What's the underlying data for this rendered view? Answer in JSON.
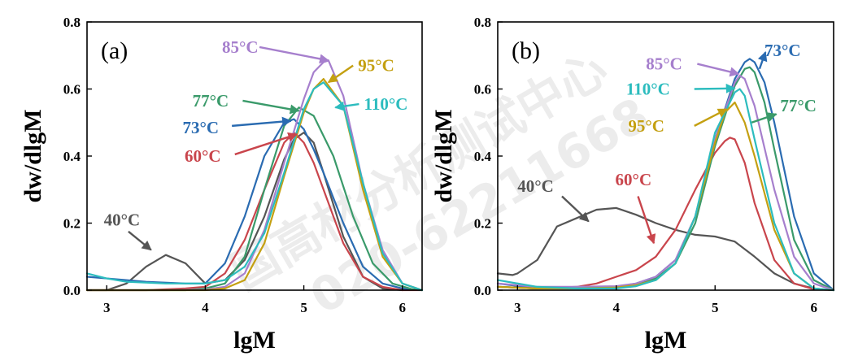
{
  "watermark": {
    "line1": "国高材分析测试中心",
    "line2": "020-62211668"
  },
  "colors": {
    "40°C": "#555555",
    "60°C": "#c9454c",
    "73°C": "#2a6bb1",
    "77°C": "#3a9a6a",
    "85°C": "#a67fcd",
    "95°C": "#c4a012",
    "110°C": "#2cbcbe"
  },
  "chart_data": [
    {
      "type": "line",
      "panel_label": "(a)",
      "xlabel": "lgM",
      "ylabel": "dw/dlgM",
      "xlim": [
        2.8,
        6.2
      ],
      "ylim": [
        0,
        0.8
      ],
      "xticks": [
        "3",
        "4",
        "5",
        "6"
      ],
      "yticks": [
        "0.0",
        "0.2",
        "0.4",
        "0.6",
        "0.8"
      ],
      "grid": false,
      "series": [
        {
          "name": "40°C",
          "x": [
            2.8,
            3.0,
            3.2,
            3.4,
            3.6,
            3.8,
            4.0,
            4.2,
            4.4,
            4.6,
            4.8,
            4.9,
            5.0,
            5.1,
            5.2,
            5.4,
            5.6,
            5.8,
            6.0
          ],
          "y": [
            0.0,
            0.0,
            0.02,
            0.07,
            0.105,
            0.08,
            0.02,
            0.03,
            0.09,
            0.22,
            0.39,
            0.45,
            0.47,
            0.44,
            0.35,
            0.16,
            0.04,
            0.005,
            0.0
          ]
        },
        {
          "name": "60°C",
          "x": [
            2.8,
            3.4,
            3.8,
            4.0,
            4.2,
            4.4,
            4.6,
            4.8,
            4.9,
            5.0,
            5.1,
            5.2,
            5.4,
            5.6,
            5.8,
            6.0,
            6.2
          ],
          "y": [
            0.0,
            0.0,
            0.005,
            0.01,
            0.05,
            0.15,
            0.3,
            0.44,
            0.47,
            0.44,
            0.38,
            0.3,
            0.14,
            0.04,
            0.01,
            0.0,
            0.0
          ]
        },
        {
          "name": "73°C",
          "x": [
            2.8,
            3.4,
            3.8,
            4.0,
            4.2,
            4.4,
            4.6,
            4.8,
            4.9,
            5.0,
            5.1,
            5.2,
            5.4,
            5.6,
            5.8,
            6.0,
            6.2
          ],
          "y": [
            0.04,
            0.025,
            0.02,
            0.02,
            0.08,
            0.22,
            0.4,
            0.5,
            0.51,
            0.48,
            0.42,
            0.35,
            0.2,
            0.07,
            0.02,
            0.005,
            0.0
          ]
        },
        {
          "name": "77°C",
          "x": [
            2.8,
            3.4,
            3.8,
            4.0,
            4.2,
            4.4,
            4.6,
            4.8,
            4.95,
            5.1,
            5.3,
            5.5,
            5.7,
            5.9,
            6.1,
            6.2
          ],
          "y": [
            0.0,
            0.0,
            0.0,
            0.005,
            0.02,
            0.1,
            0.3,
            0.49,
            0.545,
            0.52,
            0.4,
            0.22,
            0.08,
            0.02,
            0.003,
            0.0
          ]
        },
        {
          "name": "85°C",
          "x": [
            2.8,
            3.6,
            4.0,
            4.2,
            4.4,
            4.6,
            4.8,
            5.0,
            5.1,
            5.2,
            5.25,
            5.4,
            5.6,
            5.8,
            6.0,
            6.2
          ],
          "y": [
            0.0,
            0.0,
            0.002,
            0.01,
            0.05,
            0.18,
            0.38,
            0.57,
            0.65,
            0.68,
            0.685,
            0.58,
            0.32,
            0.12,
            0.02,
            0.0
          ]
        },
        {
          "name": "95°C",
          "x": [
            2.8,
            3.6,
            4.0,
            4.2,
            4.4,
            4.6,
            4.8,
            5.0,
            5.1,
            5.2,
            5.4,
            5.6,
            5.8,
            6.0,
            6.2
          ],
          "y": [
            0.0,
            0.0,
            0.0,
            0.005,
            0.03,
            0.14,
            0.34,
            0.53,
            0.6,
            0.63,
            0.55,
            0.3,
            0.1,
            0.02,
            0.0
          ]
        },
        {
          "name": "110°C",
          "x": [
            2.8,
            3.0,
            3.2,
            3.6,
            4.0,
            4.2,
            4.4,
            4.6,
            4.8,
            5.0,
            5.1,
            5.2,
            5.4,
            5.6,
            5.8,
            6.0,
            6.2
          ],
          "y": [
            0.05,
            0.035,
            0.025,
            0.02,
            0.02,
            0.03,
            0.07,
            0.17,
            0.35,
            0.54,
            0.6,
            0.62,
            0.55,
            0.32,
            0.11,
            0.02,
            0.0
          ]
        }
      ],
      "annotations": [
        {
          "series": "85°C",
          "text": "85°C",
          "label_x": 4.17,
          "label_y": 0.725,
          "arrow_from": [
            4.55,
            0.725
          ],
          "arrow_to": [
            5.25,
            0.685
          ]
        },
        {
          "series": "95°C",
          "text": "95°C",
          "label_x": 5.55,
          "label_y": 0.67,
          "arrow_from": [
            5.5,
            0.67
          ],
          "arrow_to": [
            5.25,
            0.62
          ]
        },
        {
          "series": "77°C",
          "text": "77°C",
          "label_x": 3.87,
          "label_y": 0.565,
          "arrow_from": [
            4.38,
            0.565
          ],
          "arrow_to": [
            4.95,
            0.535
          ]
        },
        {
          "series": "110°C",
          "text": "110°C",
          "label_x": 5.61,
          "label_y": 0.555,
          "arrow_from": [
            5.56,
            0.555
          ],
          "arrow_to": [
            5.32,
            0.545
          ]
        },
        {
          "series": "73°C",
          "text": "73°C",
          "label_x": 3.77,
          "label_y": 0.485,
          "arrow_from": [
            4.27,
            0.49
          ],
          "arrow_to": [
            4.87,
            0.505
          ]
        },
        {
          "series": "60°C",
          "text": "60°C",
          "label_x": 3.79,
          "label_y": 0.4,
          "arrow_from": [
            4.3,
            0.405
          ],
          "arrow_to": [
            4.93,
            0.465
          ]
        },
        {
          "series": "40°C",
          "text": "40°C",
          "label_x": 2.97,
          "label_y": 0.21,
          "arrow_from": [
            3.22,
            0.175
          ],
          "arrow_to": [
            3.45,
            0.12
          ]
        }
      ]
    },
    {
      "type": "line",
      "panel_label": "(b)",
      "xlabel": "lgM",
      "ylabel": "dw/dlgM",
      "xlim": [
        2.8,
        6.2
      ],
      "ylim": [
        0,
        0.8
      ],
      "xticks": [
        "3",
        "4",
        "5",
        "6"
      ],
      "yticks": [
        "0.0",
        "0.2",
        "0.4",
        "0.6",
        "0.8"
      ],
      "grid": false,
      "series": [
        {
          "name": "40°C",
          "x": [
            2.8,
            2.95,
            3.0,
            3.2,
            3.4,
            3.6,
            3.8,
            4.0,
            4.2,
            4.4,
            4.6,
            4.8,
            5.0,
            5.2,
            5.4,
            5.6,
            5.8,
            6.0,
            6.2
          ],
          "y": [
            0.05,
            0.045,
            0.05,
            0.09,
            0.19,
            0.215,
            0.24,
            0.245,
            0.225,
            0.2,
            0.18,
            0.165,
            0.16,
            0.145,
            0.1,
            0.05,
            0.02,
            0.005,
            0.0
          ]
        },
        {
          "name": "60°C",
          "x": [
            2.8,
            3.2,
            3.6,
            3.8,
            4.0,
            4.2,
            4.4,
            4.6,
            4.8,
            5.0,
            5.1,
            5.15,
            5.2,
            5.3,
            5.4,
            5.6,
            5.8,
            6.0,
            6.2
          ],
          "y": [
            0.01,
            0.005,
            0.01,
            0.02,
            0.04,
            0.06,
            0.1,
            0.18,
            0.3,
            0.41,
            0.445,
            0.455,
            0.45,
            0.38,
            0.26,
            0.09,
            0.02,
            0.003,
            0.0
          ]
        },
        {
          "name": "73°C",
          "x": [
            2.8,
            3.2,
            3.6,
            4.0,
            4.2,
            4.4,
            4.6,
            4.8,
            5.0,
            5.2,
            5.3,
            5.35,
            5.4,
            5.5,
            5.6,
            5.8,
            6.0,
            6.2
          ],
          "y": [
            0.02,
            0.005,
            0.005,
            0.01,
            0.02,
            0.04,
            0.09,
            0.22,
            0.45,
            0.63,
            0.68,
            0.69,
            0.68,
            0.62,
            0.5,
            0.22,
            0.05,
            0.0
          ]
        },
        {
          "name": "77°C",
          "x": [
            2.8,
            3.2,
            3.6,
            4.0,
            4.2,
            4.4,
            4.6,
            4.8,
            5.0,
            5.2,
            5.3,
            5.35,
            5.4,
            5.5,
            5.6,
            5.8,
            6.0,
            6.2
          ],
          "y": [
            0.01,
            0.005,
            0.005,
            0.008,
            0.015,
            0.035,
            0.08,
            0.2,
            0.43,
            0.61,
            0.66,
            0.665,
            0.65,
            0.56,
            0.42,
            0.15,
            0.03,
            0.0
          ]
        },
        {
          "name": "85°C",
          "x": [
            2.8,
            3.2,
            3.6,
            4.0,
            4.2,
            4.4,
            4.6,
            4.8,
            5.0,
            5.2,
            5.25,
            5.3,
            5.4,
            5.6,
            5.8,
            6.0,
            6.2
          ],
          "y": [
            0.02,
            0.01,
            0.01,
            0.012,
            0.02,
            0.04,
            0.09,
            0.22,
            0.45,
            0.62,
            0.64,
            0.63,
            0.55,
            0.3,
            0.1,
            0.02,
            0.0
          ]
        },
        {
          "name": "95°C",
          "x": [
            2.8,
            3.2,
            3.6,
            4.0,
            4.2,
            4.4,
            4.6,
            4.8,
            5.0,
            5.1,
            5.2,
            5.3,
            5.4,
            5.6,
            5.8,
            6.0,
            6.2
          ],
          "y": [
            0.01,
            0.005,
            0.005,
            0.008,
            0.015,
            0.03,
            0.08,
            0.22,
            0.44,
            0.53,
            0.56,
            0.5,
            0.4,
            0.18,
            0.05,
            0.005,
            0.0
          ]
        },
        {
          "name": "110°C",
          "x": [
            2.8,
            3.2,
            3.6,
            4.0,
            4.2,
            4.4,
            4.6,
            4.8,
            5.0,
            5.2,
            5.25,
            5.3,
            5.4,
            5.6,
            5.8,
            6.0,
            6.2
          ],
          "y": [
            0.03,
            0.01,
            0.005,
            0.005,
            0.012,
            0.03,
            0.08,
            0.22,
            0.47,
            0.59,
            0.6,
            0.58,
            0.45,
            0.2,
            0.05,
            0.005,
            0.0
          ]
        }
      ],
      "annotations": [
        {
          "series": "73°C",
          "text": "73°C",
          "label_x": 5.5,
          "label_y": 0.715,
          "arrow_from": [
            5.45,
            0.66
          ],
          "arrow_to": [
            5.51,
            0.71
          ]
        },
        {
          "series": "85°C",
          "text": "85°C",
          "label_x": 4.3,
          "label_y": 0.675,
          "arrow_from": [
            4.82,
            0.675
          ],
          "arrow_to": [
            5.24,
            0.645
          ]
        },
        {
          "series": "110°C",
          "text": "110°C",
          "label_x": 4.1,
          "label_y": 0.6,
          "arrow_from": [
            4.79,
            0.6
          ],
          "arrow_to": [
            5.2,
            0.602
          ]
        },
        {
          "series": "77°C",
          "text": "77°C",
          "label_x": 5.66,
          "label_y": 0.55,
          "arrow_from": [
            5.37,
            0.5
          ],
          "arrow_to": [
            5.62,
            0.525
          ]
        },
        {
          "series": "95°C",
          "text": "95°C",
          "label_x": 4.12,
          "label_y": 0.49,
          "arrow_from": [
            4.79,
            0.49
          ],
          "arrow_to": [
            5.12,
            0.54
          ]
        },
        {
          "series": "60°C",
          "text": "60°C",
          "label_x": 3.99,
          "label_y": 0.33,
          "arrow_from": [
            4.22,
            0.28
          ],
          "arrow_to": [
            4.38,
            0.14
          ]
        },
        {
          "series": "40°C",
          "text": "40°C",
          "label_x": 3.0,
          "label_y": 0.31,
          "arrow_from": [
            3.45,
            0.28
          ],
          "arrow_to": [
            3.72,
            0.205
          ]
        }
      ]
    }
  ]
}
